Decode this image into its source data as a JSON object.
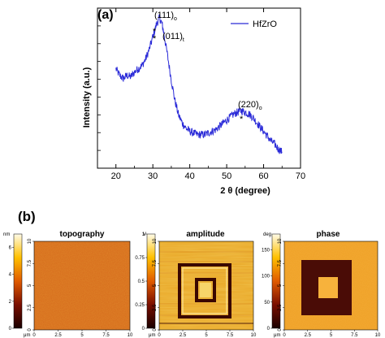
{
  "panel_a": {
    "label": "(a)",
    "legend": "HfZrO",
    "peaks": [
      {
        "label": "(111)",
        "sub": "o",
        "star": "*",
        "x": 31.4
      },
      {
        "label": "(011)",
        "sub": "t",
        "star": "*",
        "x": 31.8
      },
      {
        "label": "(220)",
        "sub": "o",
        "star": "*",
        "x": 54.5
      }
    ],
    "colors": {
      "series": "#2b2bd8",
      "axis": "#000000"
    }
  },
  "chart_data": {
    "type": "line",
    "title": "",
    "xlabel": "2 θ (degree)",
    "ylabel": "Intensity (a.u.)",
    "xlim": [
      15,
      70
    ],
    "xticks": [
      "20",
      "30",
      "40",
      "50",
      "60",
      "70"
    ],
    "series": [
      {
        "name": "HfZrO",
        "x": [
          20,
          21,
          22,
          23,
          24,
          25,
          26,
          27,
          28,
          29,
          30,
          31,
          31.8,
          32.5,
          33,
          34,
          35,
          36,
          37,
          38,
          39,
          40,
          41,
          42,
          43,
          44,
          45,
          46,
          47,
          48,
          49,
          50,
          51,
          52,
          53,
          54,
          55,
          56,
          57,
          58,
          59,
          60,
          61,
          62,
          63,
          64,
          65
        ],
        "y": [
          0.62,
          0.58,
          0.56,
          0.58,
          0.57,
          0.6,
          0.62,
          0.64,
          0.68,
          0.74,
          0.82,
          0.9,
          0.94,
          0.9,
          0.84,
          0.7,
          0.55,
          0.42,
          0.33,
          0.28,
          0.25,
          0.23,
          0.22,
          0.21,
          0.21,
          0.21,
          0.22,
          0.23,
          0.24,
          0.26,
          0.28,
          0.3,
          0.32,
          0.34,
          0.35,
          0.36,
          0.35,
          0.34,
          0.32,
          0.29,
          0.26,
          0.23,
          0.2,
          0.17,
          0.15,
          0.12,
          0.1
        ]
      }
    ]
  },
  "panel_b": {
    "label": "(b)",
    "maps": [
      {
        "title": "topography",
        "colorbar_unit": "nm",
        "colorbar_ticks": [
          "6",
          "4",
          "2",
          "0"
        ],
        "colorbar_max": 7,
        "y_ticks": [
          "10",
          "7.5",
          "5",
          "2.5",
          "0"
        ],
        "x_ticks": [
          "0",
          "2.5",
          "5",
          "7.5",
          "10"
        ],
        "axis_unit": "μm"
      },
      {
        "title": "amplitude",
        "colorbar_unit": "V",
        "colorbar_ticks": [
          "1",
          "0.75",
          "0.5",
          "0.25",
          "0"
        ],
        "colorbar_max": 1,
        "y_ticks": [
          "10",
          "7.5",
          "5",
          "2.5",
          "0"
        ],
        "x_ticks": [
          "0",
          "2.5",
          "5",
          "7.5",
          "10"
        ],
        "axis_unit": "μm"
      },
      {
        "title": "phase",
        "colorbar_unit": "deg",
        "colorbar_ticks": [
          "150",
          "100",
          "50",
          "0"
        ],
        "colorbar_max": 180,
        "y_ticks": [
          "10",
          "7.5",
          "5",
          "2.5",
          "0"
        ],
        "x_ticks": [
          "0",
          "2.5",
          "5",
          "7.5",
          "10"
        ],
        "axis_unit": "μm"
      }
    ]
  }
}
